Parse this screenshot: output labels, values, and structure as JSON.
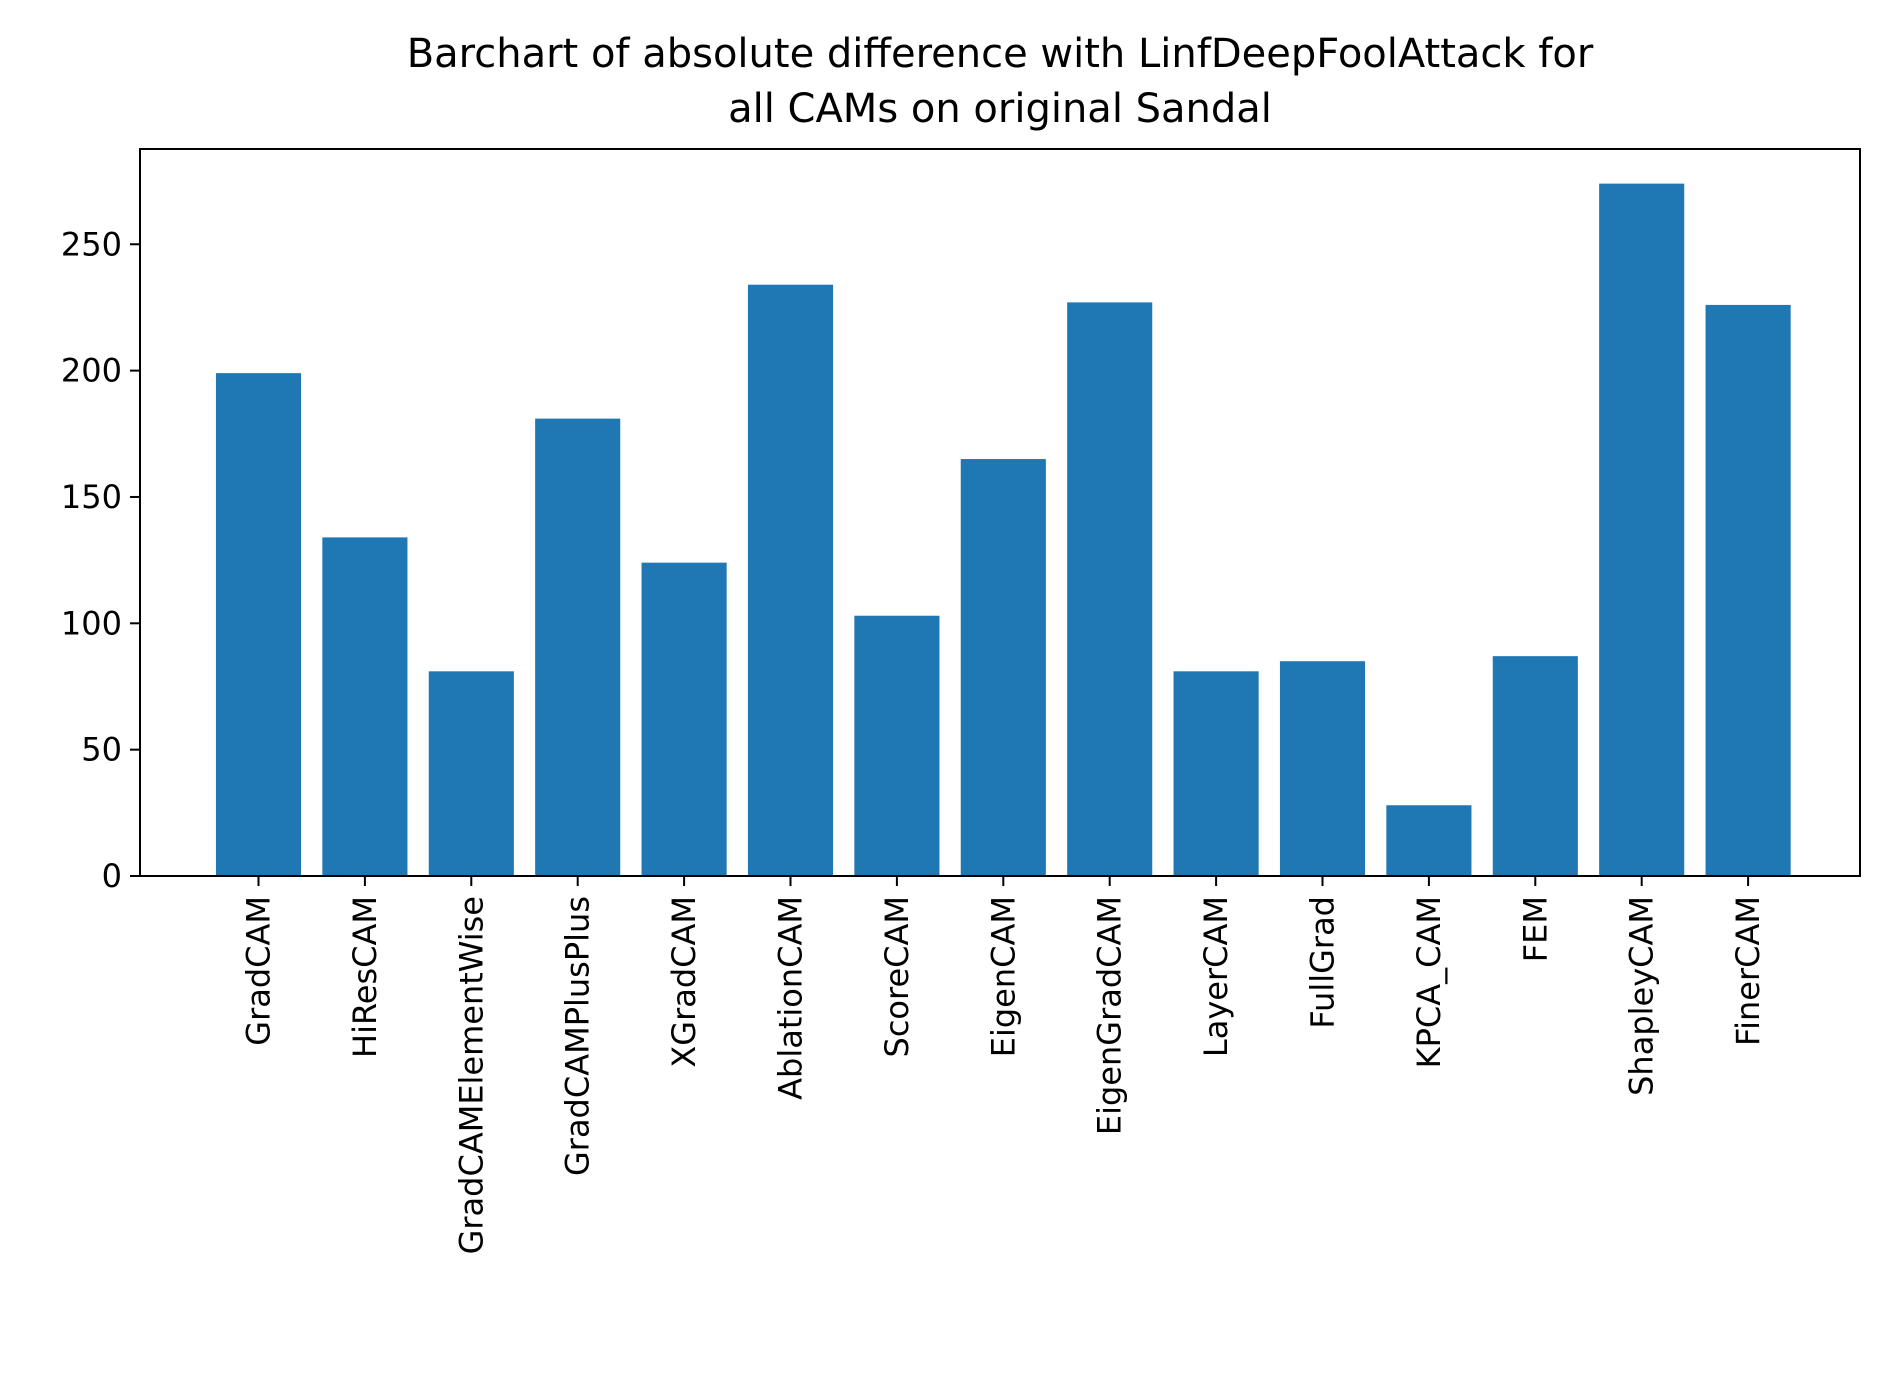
{
  "chart_data": {
    "type": "bar",
    "title_lines": [
      "Barchart of absolute difference with LinfDeepFoolAttack for",
      "all CAMs on original Sandal"
    ],
    "xlabel": "",
    "ylabel": "",
    "categories": [
      "GradCAM",
      "HiResCAM",
      "GradCAMElementWise",
      "GradCAMPlusPlus",
      "XGradCAM",
      "AblationCAM",
      "ScoreCAM",
      "EigenCAM",
      "EigenGradCAM",
      "LayerCAM",
      "FullGrad",
      "KPCA_CAM",
      "FEM",
      "ShapleyCAM",
      "FinerCAM"
    ],
    "values": [
      199,
      134,
      81,
      181,
      124,
      234,
      103,
      165,
      227,
      81,
      85,
      28,
      87,
      274,
      226
    ],
    "ylim": [
      0,
      287.7
    ],
    "yticks": [
      0,
      50,
      100,
      150,
      200,
      250
    ],
    "grid": false,
    "bar_color": "#1f77b4"
  }
}
